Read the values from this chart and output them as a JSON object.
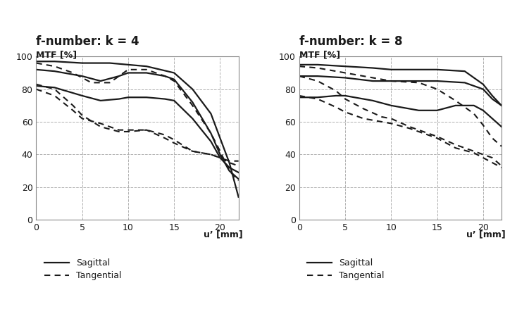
{
  "title_left": "f-number: k = 4",
  "title_right": "f-number: k = 8",
  "mtf_label": "MTF [%]",
  "xlabel": "u’ [mm]",
  "xlim": [
    0,
    22
  ],
  "ylim": [
    0,
    100
  ],
  "xticks": [
    0,
    5,
    10,
    15,
    20
  ],
  "yticks": [
    0,
    20,
    40,
    60,
    80,
    100
  ],
  "k4_sagittal": [
    [
      0,
      2,
      5,
      8,
      10,
      12,
      15,
      17,
      19,
      20,
      21,
      22
    ],
    [
      97,
      97,
      96,
      96,
      95,
      94,
      90,
      80,
      65,
      50,
      35,
      14
    ]
  ],
  "k4_sagittal2": [
    [
      0,
      2,
      5,
      7,
      9,
      10,
      12,
      14,
      15,
      17,
      19,
      20,
      21,
      22
    ],
    [
      92,
      91,
      88,
      85,
      88,
      90,
      90,
      88,
      86,
      72,
      53,
      40,
      30,
      25
    ]
  ],
  "k4_sagittal3": [
    [
      0,
      2,
      5,
      7,
      9,
      10,
      12,
      14,
      15,
      17,
      19,
      20,
      21,
      22
    ],
    [
      82,
      81,
      76,
      73,
      74,
      75,
      75,
      74,
      73,
      62,
      48,
      38,
      32,
      29
    ]
  ],
  "k4_tangential": [
    [
      0,
      2,
      4,
      6,
      8,
      10,
      12,
      14,
      15,
      17,
      19,
      20,
      21,
      22
    ],
    [
      96,
      94,
      90,
      84,
      84,
      92,
      92,
      88,
      85,
      70,
      53,
      42,
      30,
      24
    ]
  ],
  "k4_tangential2": [
    [
      0,
      2,
      4,
      5,
      7,
      9,
      10,
      12,
      14,
      15,
      17,
      19,
      20,
      21,
      22
    ],
    [
      83,
      80,
      70,
      64,
      57,
      54,
      54,
      55,
      50,
      47,
      42,
      40,
      38,
      35,
      33
    ]
  ],
  "k4_tangential3": [
    [
      0,
      2,
      4,
      5,
      7,
      9,
      10,
      12,
      14,
      15,
      17,
      19,
      20,
      21,
      22
    ],
    [
      80,
      76,
      67,
      62,
      59,
      55,
      55,
      55,
      52,
      49,
      42,
      40,
      38,
      36,
      36
    ]
  ],
  "k8_sagittal": [
    [
      0,
      2,
      5,
      8,
      10,
      13,
      15,
      18,
      20,
      21,
      22
    ],
    [
      95,
      95,
      94,
      93,
      92,
      92,
      92,
      91,
      83,
      76,
      70
    ]
  ],
  "k8_sagittal2": [
    [
      0,
      2,
      5,
      8,
      10,
      13,
      15,
      18,
      20,
      21,
      22
    ],
    [
      88,
      88,
      87,
      85,
      85,
      85,
      85,
      84,
      80,
      74,
      70
    ]
  ],
  "k8_sagittal3": [
    [
      0,
      2,
      4,
      5,
      8,
      10,
      13,
      15,
      17,
      19,
      20,
      21,
      22
    ],
    [
      75,
      75,
      76,
      76,
      73,
      70,
      67,
      67,
      70,
      70,
      67,
      62,
      57
    ]
  ],
  "k8_tangential": [
    [
      0,
      2,
      5,
      8,
      10,
      13,
      15,
      17,
      19,
      20,
      21,
      22
    ],
    [
      94,
      93,
      90,
      87,
      85,
      84,
      80,
      73,
      65,
      58,
      50,
      45
    ]
  ],
  "k8_tangential2": [
    [
      0,
      2,
      4,
      5,
      7,
      9,
      10,
      12,
      14,
      15,
      17,
      19,
      20,
      21,
      22
    ],
    [
      88,
      85,
      79,
      74,
      68,
      63,
      62,
      57,
      53,
      51,
      46,
      42,
      40,
      38,
      33
    ]
  ],
  "k8_tangential3": [
    [
      0,
      2,
      4,
      5,
      7,
      9,
      10,
      12,
      14,
      15,
      17,
      19,
      20,
      21,
      22
    ],
    [
      76,
      74,
      69,
      66,
      62,
      60,
      59,
      56,
      52,
      50,
      44,
      41,
      38,
      35,
      32
    ]
  ],
  "line_color": "#1a1a1a",
  "grid_color": "#b0b0b0",
  "background_color": "#ffffff",
  "title_fontsize": 12,
  "label_fontsize": 9,
  "tick_fontsize": 9,
  "legend_fontsize": 9
}
